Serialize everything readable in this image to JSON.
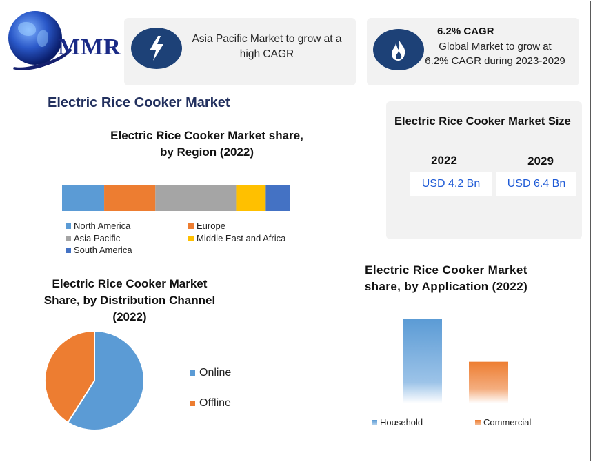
{
  "logo": {
    "text": "MMR"
  },
  "cards": {
    "region_highlight": {
      "text_line1": "Asia Pacific Market to grow at a",
      "text_line2": "high CAGR",
      "icon": "lightning-icon"
    },
    "cagr": {
      "title": "6.2% CAGR",
      "body_line1": "Global Market to grow at",
      "body_line2": "6.2% CAGR during 2023-2029",
      "icon": "flame-icon"
    }
  },
  "main_title": "Electric Rice Cooker Market",
  "market_size": {
    "title": "Electric Rice Cooker Market Size",
    "years": [
      {
        "year": "2022",
        "value": "USD 4.2 Bn"
      },
      {
        "year": "2029",
        "value": "USD 6.4 Bn"
      }
    ]
  },
  "colors": {
    "north_america": "#5b9bd5",
    "europe": "#ed7d31",
    "asia_pacific": "#a5a5a5",
    "middle_east_africa": "#ffc000",
    "south_america": "#4472c4",
    "online": "#5b9bd5",
    "offline": "#ed7d31",
    "icon_circle": "#1d4177"
  },
  "chart_data": [
    {
      "type": "bar",
      "stacked": true,
      "orientation": "horizontal",
      "title_line1": "Electric Rice Cooker Market share,",
      "title_line2": "by Region (2022)",
      "series": [
        {
          "name": "North America",
          "values": [
            18.5
          ]
        },
        {
          "name": "Europe",
          "values": [
            22.5
          ]
        },
        {
          "name": "Asia Pacific",
          "values": [
            35.5
          ]
        },
        {
          "name": "Middle East and Africa",
          "values": [
            13
          ]
        },
        {
          "name": "South America",
          "values": [
            10.5
          ]
        }
      ],
      "xlim": [
        0,
        100
      ],
      "legend": "bottom",
      "grid": false
    },
    {
      "type": "pie",
      "title_line1": "Electric Rice Cooker Market",
      "title_line2": "Share, by Distribution Channel",
      "title_line3": "(2022)",
      "categories": [
        "Online",
        "Offline"
      ],
      "values": [
        59,
        41
      ],
      "legend": "right"
    },
    {
      "type": "bar",
      "title_line1": "Electric Rice Cooker Market",
      "title_line2": "share, by Application (2022)",
      "categories": [
        "Household",
        "Commercial"
      ],
      "values": [
        67,
        33
      ],
      "ylim": [
        0,
        70
      ],
      "legend": "bottom",
      "grid": false
    }
  ]
}
